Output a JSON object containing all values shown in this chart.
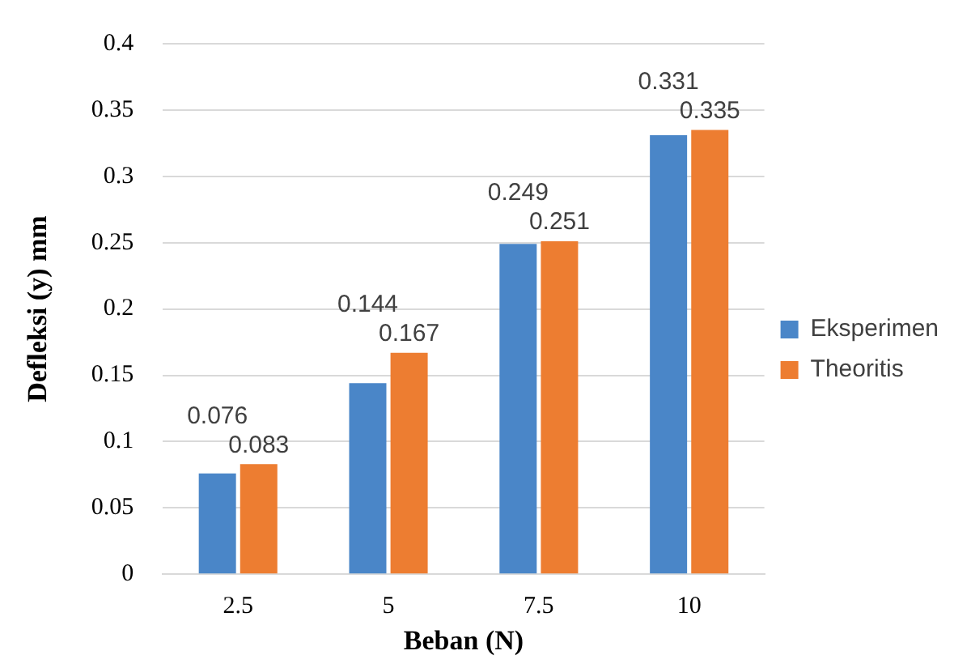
{
  "chart_data": {
    "type": "bar",
    "xlabel": "Beban (N)",
    "ylabel": "Defleksi (y) mm",
    "categories": [
      "2.5",
      "5",
      "7.5",
      "10"
    ],
    "series": [
      {
        "name": "Eksperimen",
        "color": "#4a86c8",
        "values": [
          0.076,
          0.144,
          0.249,
          0.331
        ]
      },
      {
        "name": "Theoritis",
        "color": "#ed7d31",
        "values": [
          0.083,
          0.167,
          0.251,
          0.335
        ]
      }
    ],
    "ylim": [
      0,
      0.4
    ],
    "yticks": [
      0,
      0.05,
      0.1,
      0.15,
      0.2,
      0.25,
      0.3,
      0.35,
      0.4
    ],
    "grid": "y",
    "legend": "right",
    "data_labels": true
  }
}
